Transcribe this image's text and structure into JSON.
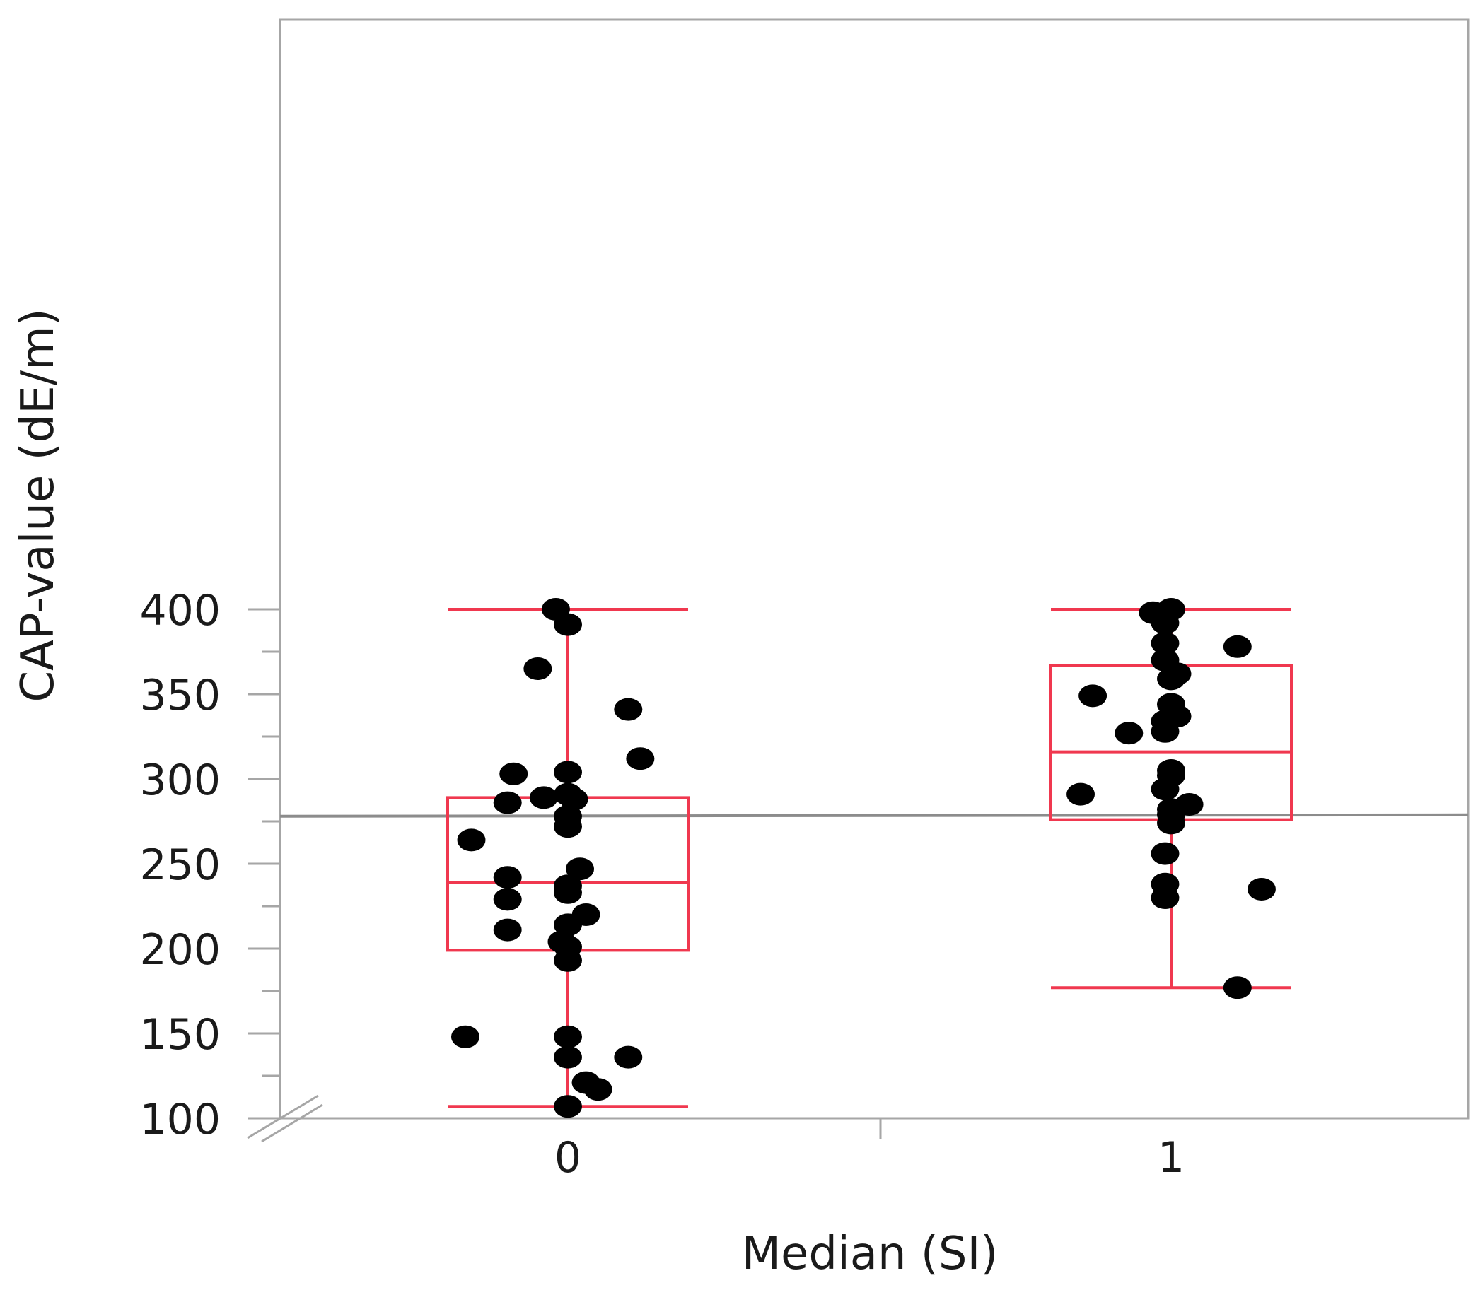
{
  "chart_data": {
    "type": "box",
    "xlabel": "Median (SI)",
    "ylabel": "CAP-value (dE/m)",
    "categories": [
      "0",
      "1"
    ],
    "ylim": [
      100,
      420
    ],
    "yticks": [
      100,
      150,
      200,
      250,
      300,
      350,
      400
    ],
    "reference_line": 278,
    "grid": false,
    "box_color": "#f0384f",
    "point_color": "#000000",
    "boxes": [
      {
        "category": "0",
        "min": 107,
        "q1": 199,
        "median": 239,
        "q3": 289,
        "max": 400
      },
      {
        "category": "1",
        "min": 177,
        "q1": 276,
        "median": 316,
        "q3": 367,
        "max": 400
      }
    ],
    "points": [
      {
        "category": "0",
        "values": [
          400,
          391,
          365,
          341,
          312,
          304,
          303,
          291,
          289,
          288,
          286,
          278,
          272,
          264,
          247,
          242,
          237,
          233,
          229,
          220,
          214,
          211,
          204,
          201,
          193,
          148,
          148,
          136,
          136,
          121,
          117,
          107
        ],
        "jitter": [
          -0.02,
          0.0,
          -0.05,
          0.1,
          0.12,
          0.0,
          -0.09,
          0.0,
          -0.04,
          0.01,
          -0.1,
          0.0,
          0.0,
          -0.16,
          0.02,
          -0.1,
          0.0,
          0.0,
          -0.1,
          0.03,
          0.0,
          -0.1,
          -0.01,
          0.0,
          0.0,
          -0.17,
          0.0,
          0.0,
          0.1,
          0.03,
          0.05,
          0.0
        ]
      },
      {
        "category": "1",
        "values": [
          400,
          398,
          392,
          380,
          378,
          370,
          362,
          359,
          349,
          344,
          337,
          334,
          328,
          327,
          305,
          302,
          294,
          291,
          285,
          282,
          279,
          274,
          256,
          238,
          235,
          230,
          177
        ],
        "jitter": [
          0.0,
          -0.03,
          -0.01,
          -0.01,
          0.11,
          -0.01,
          0.01,
          0.0,
          -0.13,
          0.0,
          0.01,
          -0.01,
          -0.01,
          -0.07,
          0.0,
          0.0,
          -0.01,
          -0.15,
          0.03,
          0.0,
          0.0,
          0.0,
          -0.01,
          -0.01,
          0.15,
          -0.01,
          0.11
        ]
      }
    ]
  }
}
